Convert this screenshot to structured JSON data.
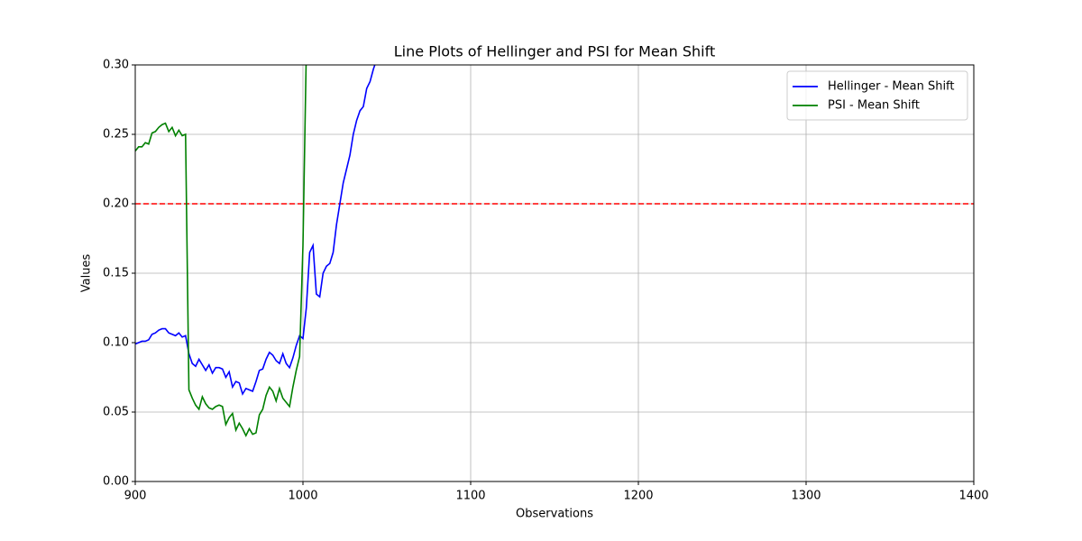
{
  "chart_data": {
    "type": "line",
    "title": "Line Plots of Hellinger and PSI for Mean Shift",
    "x_label": "Observations",
    "y_label": "Values",
    "x": [
      900,
      902,
      904,
      906,
      908,
      910,
      912,
      914,
      916,
      918,
      920,
      922,
      924,
      926,
      928,
      930,
      932,
      934,
      936,
      938,
      940,
      942,
      944,
      946,
      948,
      950,
      952,
      954,
      956,
      958,
      960,
      962,
      964,
      966,
      968,
      970,
      972,
      974,
      976,
      978,
      980,
      982,
      984,
      986,
      988,
      990,
      992,
      994,
      996,
      998,
      1000,
      1002,
      1004,
      1006,
      1008,
      1010,
      1012,
      1014,
      1016,
      1018,
      1020,
      1022,
      1024,
      1026,
      1028,
      1030,
      1032,
      1034,
      1036,
      1038,
      1040,
      1042,
      1044
    ],
    "series": [
      {
        "name": "Hellinger - Mean Shift",
        "color": "#0000ff",
        "values": [
          0.099,
          0.1,
          0.101,
          0.101,
          0.102,
          0.106,
          0.107,
          0.109,
          0.11,
          0.11,
          0.107,
          0.106,
          0.105,
          0.107,
          0.104,
          0.105,
          0.092,
          0.085,
          0.083,
          0.088,
          0.084,
          0.08,
          0.084,
          0.078,
          0.082,
          0.082,
          0.081,
          0.075,
          0.079,
          0.068,
          0.072,
          0.071,
          0.063,
          0.067,
          0.066,
          0.065,
          0.072,
          0.08,
          0.081,
          0.088,
          0.093,
          0.091,
          0.087,
          0.085,
          0.092,
          0.085,
          0.082,
          0.089,
          0.098,
          0.105,
          0.103,
          0.125,
          0.165,
          0.17,
          0.135,
          0.133,
          0.15,
          0.155,
          0.157,
          0.165,
          0.185,
          0.2,
          0.215,
          0.225,
          0.235,
          0.25,
          0.26,
          0.267,
          0.27,
          0.283,
          0.288,
          0.297,
          0.304
        ]
      },
      {
        "name": "PSI - Mean Shift",
        "color": "#008000",
        "values": [
          0.238,
          0.241,
          0.241,
          0.244,
          0.243,
          0.251,
          0.252,
          0.255,
          0.257,
          0.258,
          0.252,
          0.255,
          0.249,
          0.253,
          0.249,
          0.25,
          0.066,
          0.06,
          0.055,
          0.052,
          0.061,
          0.056,
          0.053,
          0.052,
          0.054,
          0.055,
          0.054,
          0.041,
          0.046,
          0.049,
          0.037,
          0.042,
          0.038,
          0.033,
          0.038,
          0.034,
          0.035,
          0.048,
          0.052,
          0.062,
          0.068,
          0.065,
          0.058,
          0.067,
          0.06,
          0.057,
          0.054,
          0.068,
          0.08,
          0.09,
          0.17,
          0.31,
          null,
          null,
          null,
          null,
          null,
          null,
          null,
          null,
          null,
          null,
          null,
          null,
          null,
          null,
          null,
          null,
          null,
          null,
          null,
          null,
          null
        ]
      }
    ],
    "threshold": 0.2,
    "threshold_color": "#ff0000",
    "xlim": [
      900,
      1400
    ],
    "ylim": [
      0,
      0.3
    ],
    "xticks": [
      900,
      1000,
      1100,
      1200,
      1300,
      1400
    ],
    "yticks": [
      {
        "value": 0,
        "label": "0.00"
      },
      {
        "value": 0.05,
        "label": "0.05"
      },
      {
        "value": 0.1,
        "label": "0.10"
      },
      {
        "value": 0.15,
        "label": "0.15"
      },
      {
        "value": 0.2,
        "label": "0.20"
      },
      {
        "value": 0.25,
        "label": "0.25"
      },
      {
        "value": 0.3,
        "label": "0.30"
      }
    ],
    "grid": true,
    "legend": "upper right"
  }
}
